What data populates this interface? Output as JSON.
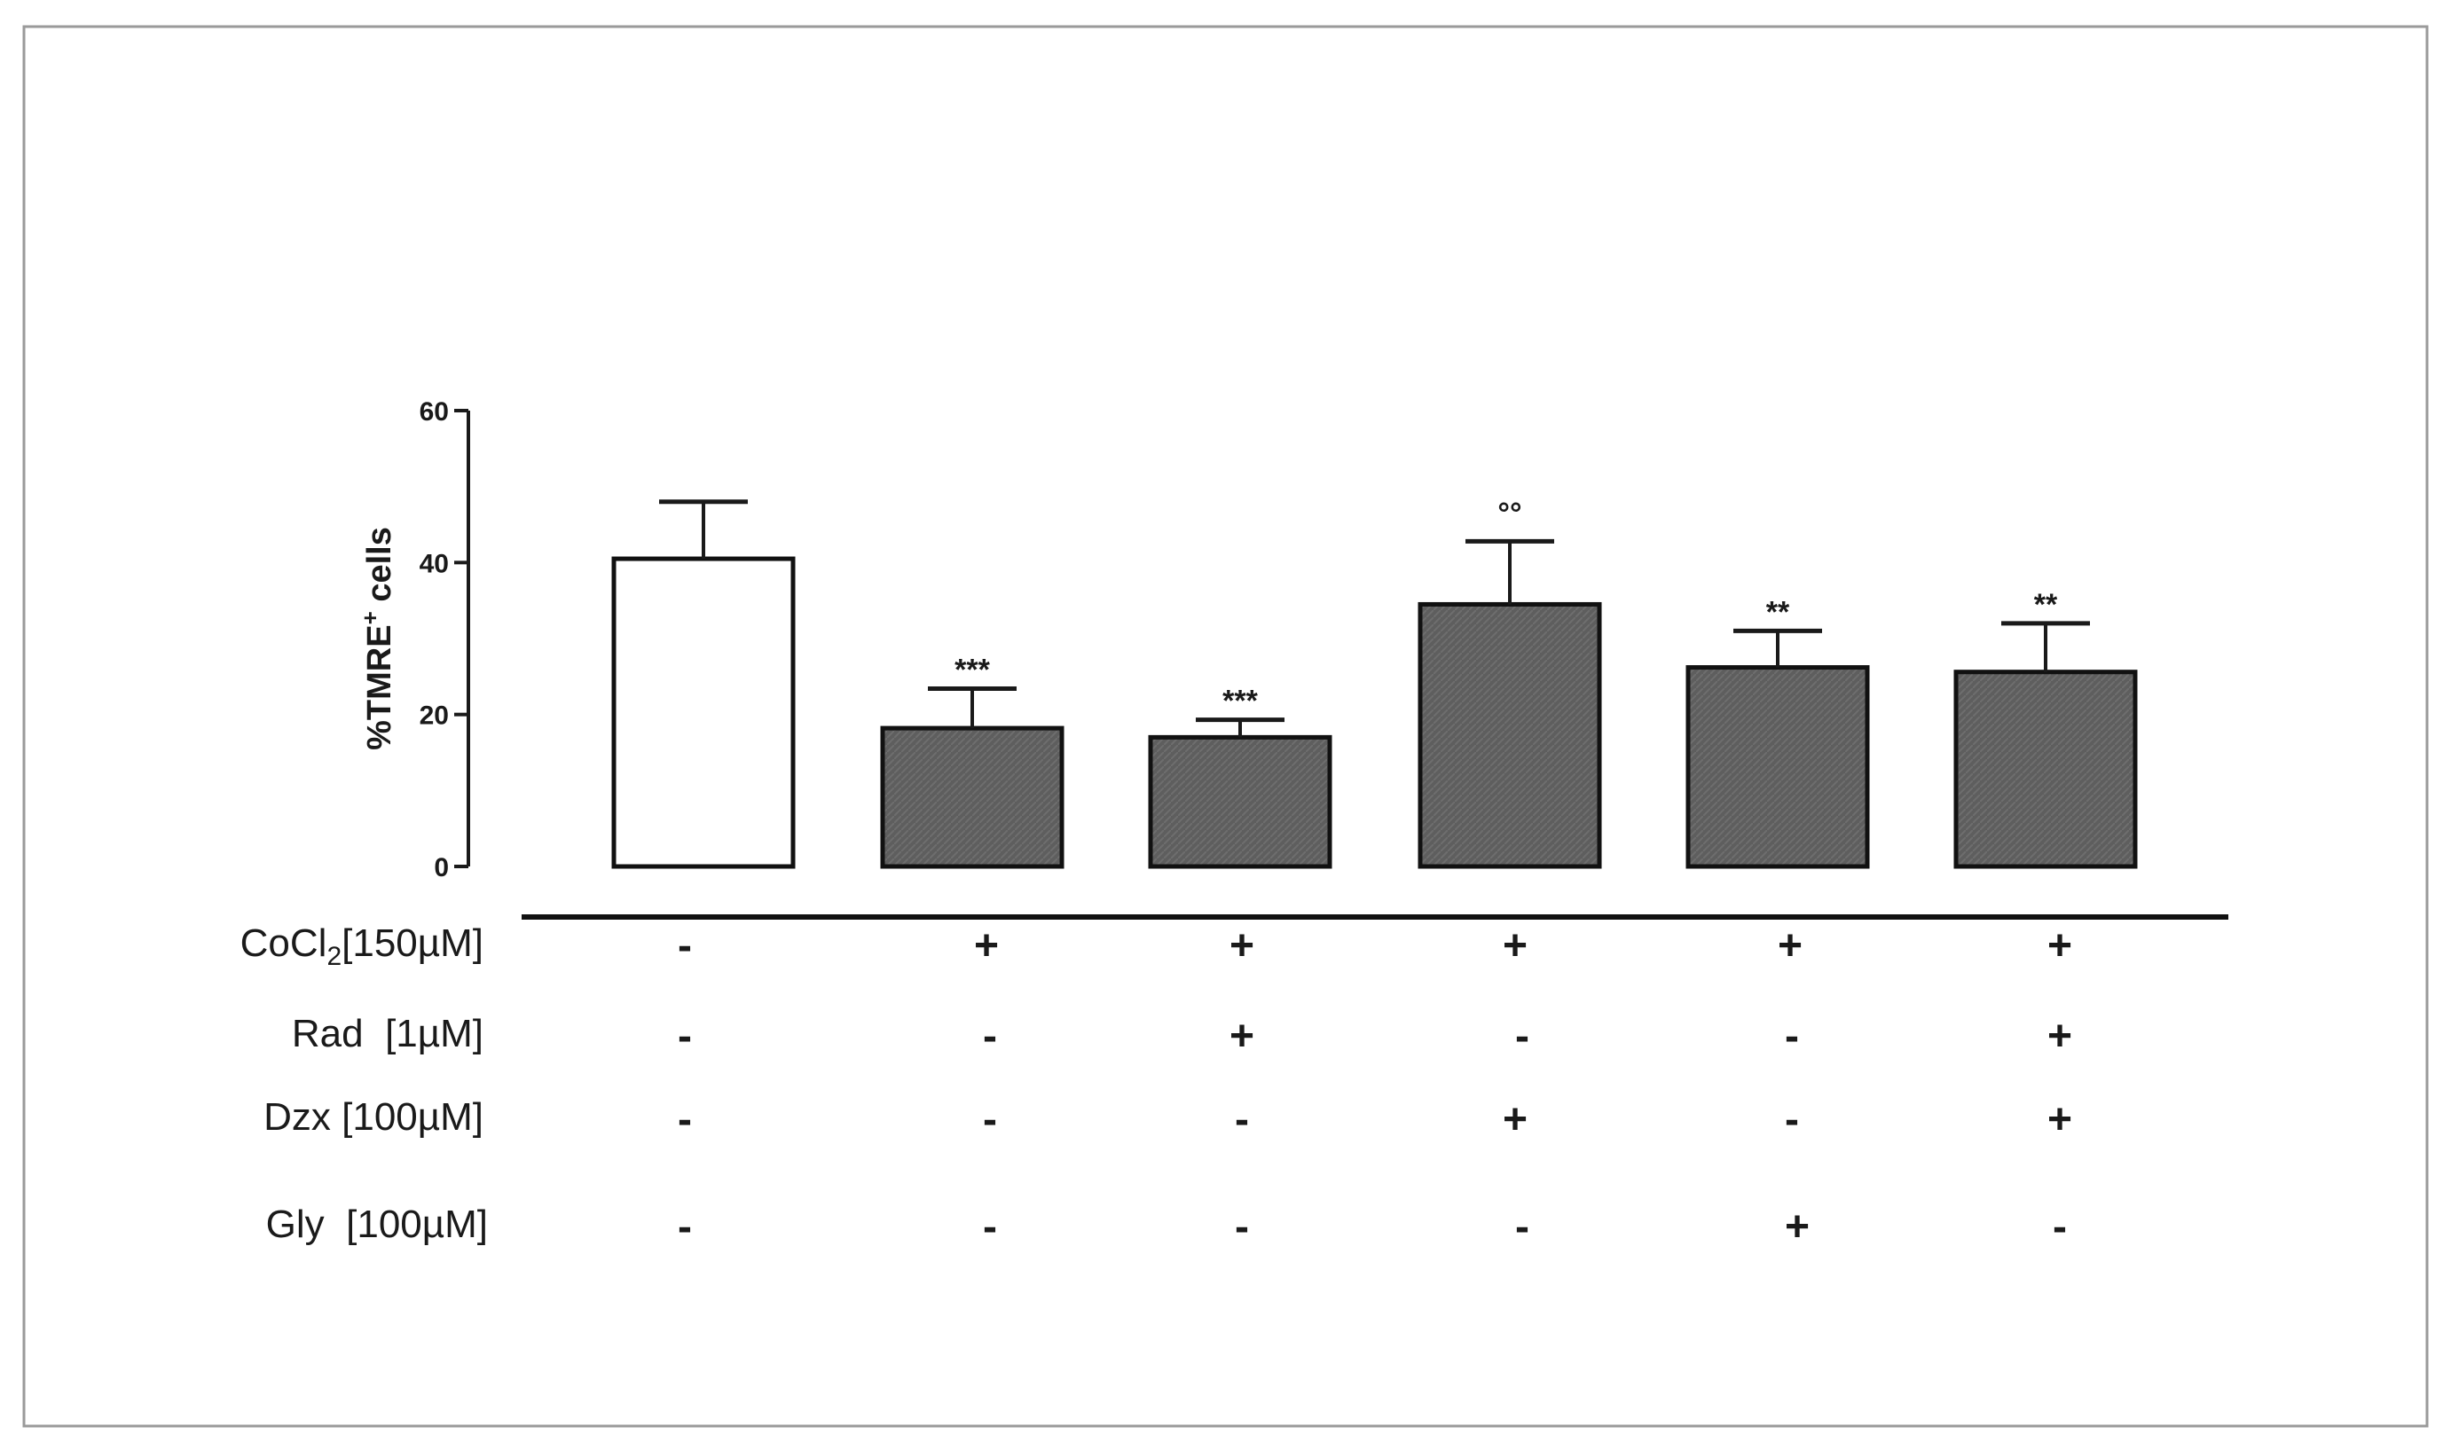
{
  "chart_data": {
    "type": "bar",
    "ylabel": "%TMRE",
    "ylabel_sup": "+",
    "ylabel_suffix": " cells",
    "ylim": [
      0,
      60
    ],
    "yticks": [
      "0",
      "20",
      "40",
      "60"
    ],
    "grid": false,
    "series": [
      {
        "values": [
          40.5,
          18.2,
          17.0,
          34.5,
          26.2,
          25.6
        ],
        "errors": [
          7.5,
          5.2,
          2.3,
          8.3,
          4.8,
          6.4
        ],
        "colors": [
          "#ffffff",
          "#5e5e5e",
          "#5e5e5e",
          "#5e5e5e",
          "#5e5e5e",
          "#5e5e5e"
        ]
      }
    ],
    "significance": [
      "",
      "***",
      "***",
      "°°",
      "**",
      "**"
    ],
    "treatments": [
      {
        "label": "CoCl",
        "label_sub": "2",
        "label_suffix": "[150µM]",
        "marks": [
          "-",
          "+",
          "+",
          "+",
          "+",
          "+"
        ]
      },
      {
        "label": "Rad  [1µM]",
        "marks": [
          "-",
          "-",
          "+",
          "-",
          "-",
          "+"
        ]
      },
      {
        "label": "Dzx [100µM]",
        "marks": [
          "-",
          "-",
          "-",
          "+",
          "-",
          "+"
        ]
      },
      {
        "label": "Gly  [100µM]",
        "marks": [
          "-",
          "-",
          "-",
          "-",
          "+",
          "-"
        ]
      }
    ]
  }
}
